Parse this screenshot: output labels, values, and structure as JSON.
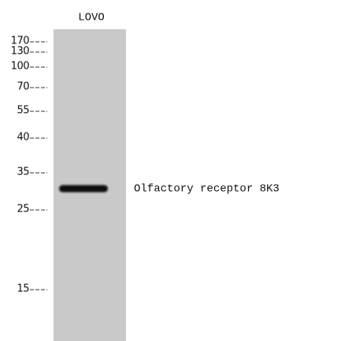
{
  "lane_label": "LOVO",
  "markers": [
    "170",
    "130",
    "100",
    "70",
    "55",
    "40",
    "35",
    "25",
    "15"
  ],
  "band_label": "Olfactory receptor 8K3"
}
